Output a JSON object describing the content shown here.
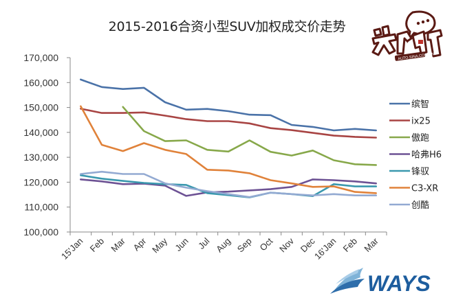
{
  "title": "2015-2016合资小型SUV加权成交价走势",
  "chart_data": {
    "type": "line",
    "title": "2015-2016合资小型SUV加权成交价走势",
    "xlabel": "",
    "ylabel": "",
    "ylim": [
      100000,
      170000
    ],
    "y_ticks": [
      100000,
      110000,
      120000,
      130000,
      140000,
      150000,
      160000,
      170000
    ],
    "y_tick_labels": [
      "100,000",
      "110,000",
      "120,000",
      "130,000",
      "140,000",
      "150,000",
      "160,000",
      "170,000"
    ],
    "grid": false,
    "legend_position": "right",
    "categories": [
      "15'Jan",
      "Feb",
      "Mar",
      "Apr",
      "May",
      "Jun",
      "Jul",
      "Aug",
      "Sep",
      "Oct",
      "Nov",
      "Dec",
      "16'Jan",
      "Feb",
      "Mar"
    ],
    "series": [
      {
        "name": "缤智",
        "color": "#4a72a8",
        "values": [
          161200,
          158200,
          157400,
          157900,
          152100,
          149100,
          149400,
          148500,
          147100,
          146900,
          143000,
          142200,
          140800,
          141400,
          140800
        ]
      },
      {
        "name": "ix25",
        "color": "#a84443",
        "values": [
          149500,
          147800,
          147800,
          148000,
          146700,
          145300,
          144500,
          144500,
          143600,
          141700,
          140900,
          139800,
          138700,
          138200,
          137900
        ]
      },
      {
        "name": "傲跑",
        "color": "#87a84a",
        "values": [
          null,
          null,
          150200,
          140500,
          136500,
          136800,
          133000,
          132300,
          136800,
          132200,
          130700,
          132700,
          128800,
          127200,
          126900
        ]
      },
      {
        "name": "哈弗H6",
        "color": "#6d5294",
        "values": [
          121100,
          120300,
          119200,
          119400,
          118600,
          114500,
          115900,
          116200,
          116700,
          117200,
          118100,
          121100,
          120800,
          120300,
          119500
        ]
      },
      {
        "name": "锋驭",
        "color": "#3a98ae",
        "values": [
          122800,
          121400,
          120500,
          119700,
          119200,
          118900,
          115600,
          114800,
          113900,
          115800,
          115200,
          114400,
          119200,
          118300,
          118300
        ]
      },
      {
        "name": "C3-XR",
        "color": "#e0823a",
        "values": [
          150500,
          135000,
          132500,
          135700,
          133000,
          131300,
          125000,
          124700,
          123600,
          120800,
          119500,
          118100,
          118300,
          116100,
          115600
        ]
      },
      {
        "name": "创酷",
        "color": "#93aad2",
        "values": [
          123300,
          124200,
          123300,
          123300,
          119500,
          117800,
          116400,
          115200,
          114000,
          115800,
          115200,
          114700,
          115200,
          114700,
          114700
        ]
      }
    ]
  },
  "logos": {
    "top_right": {
      "text": "数说",
      "subtext": "AUTO.SINA.COM.CN"
    },
    "bottom_right": {
      "text": "WAYS"
    }
  }
}
